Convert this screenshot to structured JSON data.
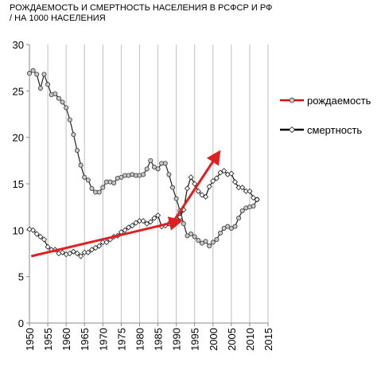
{
  "title_line1": "РОЖДАЕМОСТЬ И СМЕРТНОСТЬ НАСЕЛЕНИЯ В РСФСР И РФ",
  "title_line2": "/ НА 1000 НАСЕЛЕНИЯ",
  "chart_data": {
    "type": "line",
    "title": "РОЖДАЕМОСТЬ И СМЕРТНОСТЬ НАСЕЛЕНИЯ В РСФСР И РФ / НА 1000 НАСЕЛЕНИЯ",
    "xlim": [
      1950,
      2015
    ],
    "ylim": [
      0,
      30
    ],
    "xticks": [
      1950,
      1955,
      1960,
      1965,
      1970,
      1975,
      1980,
      1985,
      1990,
      1995,
      2000,
      2005,
      2010,
      2015
    ],
    "yticks": [
      0,
      5,
      10,
      15,
      20,
      25,
      30
    ],
    "grid": "vertical",
    "legend_position": "right",
    "colors": {
      "births_line": "#e00000",
      "deaths_line": "#000000",
      "arrow": "#e02020",
      "grid": "#bfbfbf"
    },
    "series": [
      {
        "name": "рождаемость",
        "marker": "circle",
        "x": [
          1950,
          1951,
          1952,
          1953,
          1954,
          1955,
          1956,
          1957,
          1958,
          1959,
          1960,
          1961,
          1962,
          1963,
          1964,
          1965,
          1966,
          1967,
          1968,
          1969,
          1970,
          1971,
          1972,
          1973,
          1974,
          1975,
          1976,
          1977,
          1978,
          1979,
          1980,
          1981,
          1982,
          1983,
          1984,
          1985,
          1986,
          1987,
          1988,
          1989,
          1990,
          1991,
          1992,
          1993,
          1994,
          1995,
          1996,
          1997,
          1998,
          1999,
          2000,
          2001,
          2002,
          2003,
          2004,
          2005,
          2006,
          2007,
          2008,
          2009,
          2010,
          2011,
          2012
        ],
        "values": [
          26.9,
          27.2,
          26.8,
          25.3,
          26.8,
          25.7,
          24.6,
          24.7,
          24.2,
          23.8,
          23.2,
          21.9,
          20.3,
          18.6,
          17.0,
          15.7,
          15.4,
          14.5,
          14.1,
          14.1,
          14.6,
          15.2,
          15.2,
          15.1,
          15.6,
          15.7,
          15.9,
          15.9,
          16.0,
          15.9,
          15.9,
          16.0,
          16.6,
          17.5,
          16.8,
          16.6,
          17.2,
          17.2,
          16.0,
          14.6,
          13.4,
          12.1,
          10.7,
          9.4,
          9.6,
          9.3,
          8.9,
          8.6,
          8.8,
          8.3,
          8.7,
          9.0,
          9.7,
          10.2,
          10.4,
          10.2,
          10.4,
          11.3,
          12.1,
          12.4,
          12.5,
          12.6,
          13.3
        ]
      },
      {
        "name": "смертность",
        "marker": "diamond",
        "x": [
          1950,
          1951,
          1952,
          1953,
          1954,
          1955,
          1956,
          1957,
          1958,
          1959,
          1960,
          1961,
          1962,
          1963,
          1964,
          1965,
          1966,
          1967,
          1968,
          1969,
          1970,
          1971,
          1972,
          1973,
          1974,
          1975,
          1976,
          1977,
          1978,
          1979,
          1980,
          1981,
          1982,
          1983,
          1984,
          1985,
          1986,
          1987,
          1988,
          1989,
          1990,
          1991,
          1992,
          1993,
          1994,
          1995,
          1996,
          1997,
          1998,
          1999,
          2000,
          2001,
          2002,
          2003,
          2004,
          2005,
          2006,
          2007,
          2008,
          2009,
          2010,
          2011,
          2012
        ],
        "values": [
          10.1,
          10.0,
          9.6,
          9.3,
          9.0,
          8.2,
          7.9,
          7.9,
          7.5,
          7.6,
          7.4,
          7.5,
          7.7,
          7.5,
          7.2,
          7.6,
          7.6,
          7.9,
          8.1,
          8.3,
          8.7,
          8.7,
          9.0,
          9.3,
          9.4,
          9.8,
          10.0,
          10.3,
          10.5,
          10.8,
          11.0,
          11.0,
          10.7,
          10.9,
          11.3,
          11.6,
          10.4,
          10.5,
          10.7,
          10.7,
          11.2,
          11.4,
          12.2,
          14.5,
          15.7,
          15.0,
          14.2,
          13.8,
          13.6,
          14.7,
          15.3,
          15.6,
          16.2,
          16.4,
          16.0,
          16.1,
          15.2,
          14.6,
          14.6,
          14.2,
          14.2,
          13.5,
          13.3
        ]
      }
    ],
    "annotations": [
      {
        "type": "arrow",
        "from": [
          1950.5,
          7.2
        ],
        "to": [
          1990,
          10.9
        ]
      },
      {
        "type": "arrow",
        "from": [
          1988.5,
          10.5
        ],
        "to": [
          2001,
          18.0
        ]
      }
    ]
  }
}
